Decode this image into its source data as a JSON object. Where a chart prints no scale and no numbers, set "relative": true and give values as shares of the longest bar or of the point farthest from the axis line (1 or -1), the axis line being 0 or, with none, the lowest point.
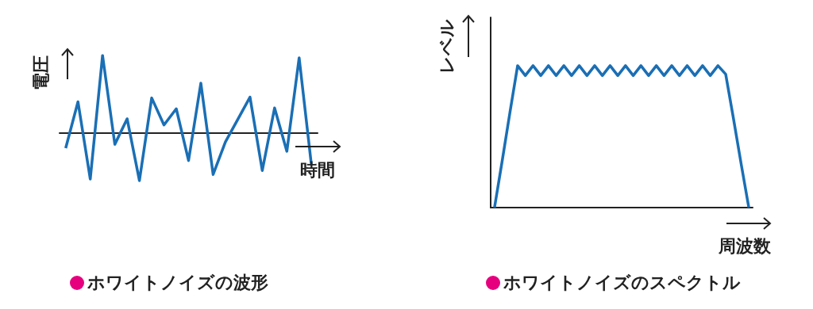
{
  "chart_data": [
    {
      "type": "line",
      "title": "ホワイトノイズの波形",
      "xlabel": "時間",
      "ylabel": "電圧",
      "relative": true,
      "marker": "none",
      "color": "#1a6fb5",
      "categories": [
        null,
        null,
        null,
        null,
        null,
        null,
        null,
        null,
        null,
        null,
        null,
        null,
        null,
        null,
        null,
        null,
        null,
        null,
        null,
        null,
        null
      ],
      "values": [
        -0.2,
        0.4,
        -0.6,
        1,
        -0.15,
        0.18,
        -0.62,
        0.45,
        0.1,
        0.31,
        -0.36,
        0.64,
        -0.54,
        -0.12,
        0.17,
        0.46,
        -0.49,
        0.32,
        -0.24,
        0.97,
        -0.42
      ]
    },
    {
      "type": "line",
      "title": "ホワイトノイズのスペクトル",
      "xlabel": "周波数",
      "ylabel": "レベル",
      "relative": true,
      "marker": "none",
      "color": "#1a6fb5",
      "categories": [
        null,
        null,
        null,
        null,
        null,
        null,
        null,
        null,
        null,
        null,
        null,
        null,
        null,
        null,
        null,
        null,
        null,
        null,
        null,
        null,
        null,
        null,
        null,
        null,
        null,
        null,
        null,
        null,
        null,
        null,
        null,
        null,
        null,
        null
      ],
      "values": [
        0,
        0.33,
        0.67,
        1,
        0.93,
        1,
        0.93,
        1,
        0.93,
        1,
        0.93,
        1,
        0.93,
        1,
        0.93,
        1,
        0.93,
        1,
        0.93,
        1,
        0.93,
        1,
        0.93,
        1,
        0.93,
        1,
        0.93,
        1,
        0.93,
        1,
        0.94,
        0.63,
        0.31,
        0
      ]
    }
  ]
}
